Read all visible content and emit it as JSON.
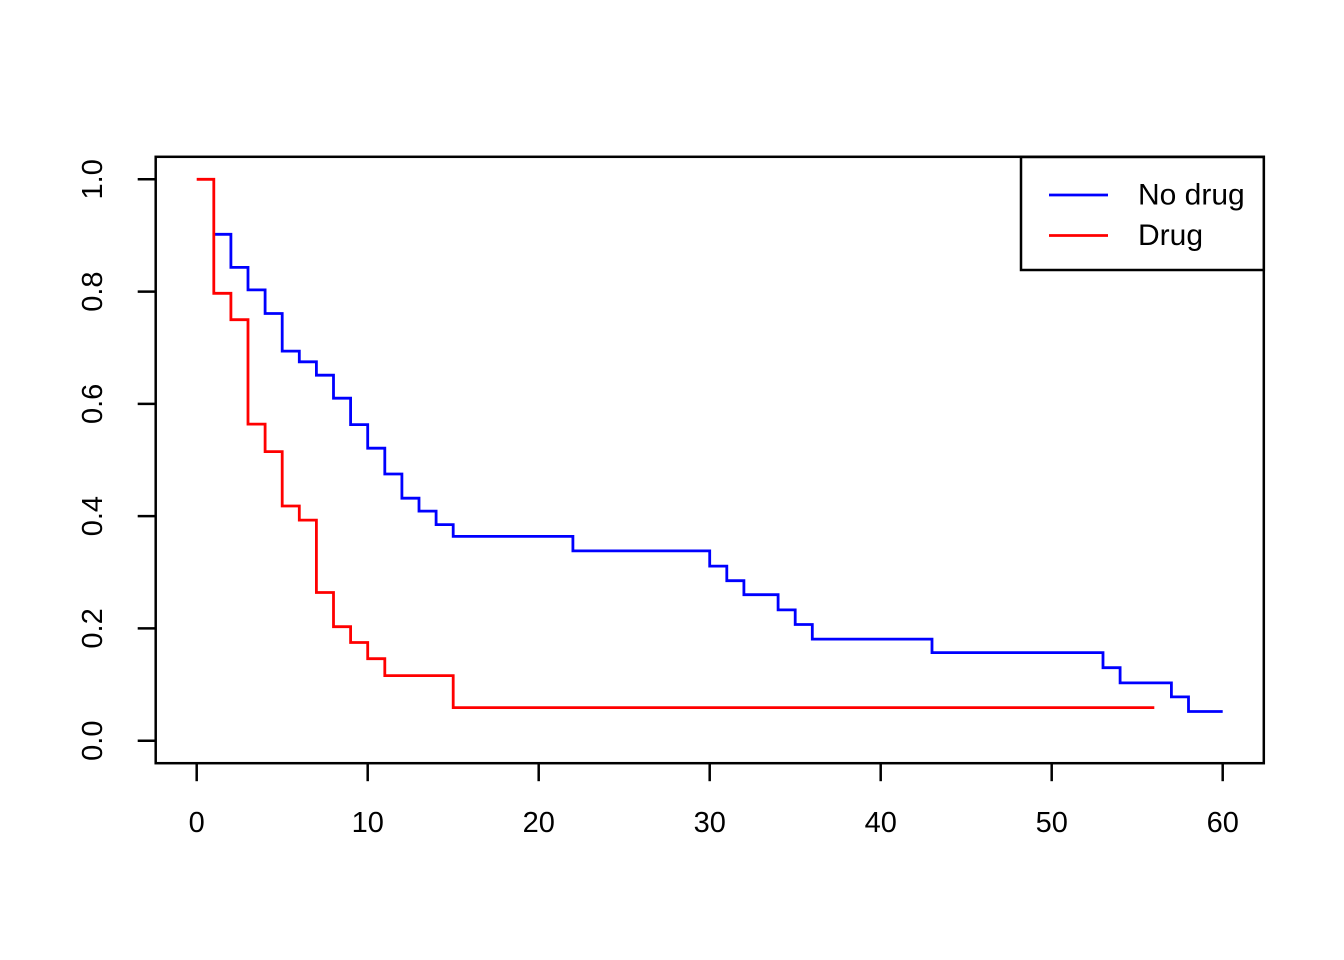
{
  "chart_data": {
    "type": "line",
    "chart_style": "kaplan-meier-step-survival",
    "title": "",
    "xlabel": "",
    "ylabel": "",
    "xlim": [
      0,
      60
    ],
    "ylim": [
      0.0,
      1.0
    ],
    "grid": false,
    "x_ticks": [
      0,
      10,
      20,
      30,
      40,
      50,
      60
    ],
    "x_tick_labels": [
      "0",
      "10",
      "20",
      "30",
      "40",
      "50",
      "60"
    ],
    "y_ticks": [
      0.0,
      0.2,
      0.4,
      0.6,
      0.8,
      1.0
    ],
    "y_tick_labels": [
      "0.0",
      "0.2",
      "0.4",
      "0.6",
      "0.8",
      "1.0"
    ],
    "legend": {
      "position": "topright",
      "entries": [
        {
          "label": "No drug",
          "color": "#0000FF"
        },
        {
          "label": "Drug",
          "color": "#FF0000"
        }
      ]
    },
    "series": [
      {
        "name": "No drug",
        "color": "#0000FF",
        "step": "post",
        "points": [
          [
            1,
            0.902
          ],
          [
            2,
            0.843
          ],
          [
            3,
            0.803
          ],
          [
            4,
            0.761
          ],
          [
            5,
            0.694
          ],
          [
            6,
            0.675
          ],
          [
            7,
            0.651
          ],
          [
            8,
            0.61
          ],
          [
            9,
            0.563
          ],
          [
            10,
            0.521
          ],
          [
            11,
            0.475
          ],
          [
            12,
            0.432
          ],
          [
            13,
            0.409
          ],
          [
            14,
            0.385
          ],
          [
            15,
            0.364
          ],
          [
            22,
            0.338
          ],
          [
            30,
            0.311
          ],
          [
            31,
            0.285
          ],
          [
            32,
            0.26
          ],
          [
            34,
            0.233
          ],
          [
            35,
            0.207
          ],
          [
            36,
            0.181
          ],
          [
            43,
            0.157
          ],
          [
            53,
            0.13
          ],
          [
            54,
            0.103
          ],
          [
            57,
            0.078
          ],
          [
            58,
            0.052
          ],
          [
            60,
            0.052
          ]
        ]
      },
      {
        "name": "Drug",
        "color": "#FF0000",
        "step": "post",
        "points": [
          [
            0,
            1.0
          ],
          [
            1,
            0.797
          ],
          [
            2,
            0.75
          ],
          [
            3,
            0.564
          ],
          [
            4,
            0.515
          ],
          [
            5,
            0.418
          ],
          [
            6,
            0.393
          ],
          [
            7,
            0.264
          ],
          [
            8,
            0.203
          ],
          [
            9,
            0.175
          ],
          [
            10,
            0.146
          ],
          [
            11,
            0.116
          ],
          [
            15,
            0.059
          ],
          [
            56,
            0.059
          ]
        ]
      }
    ]
  }
}
